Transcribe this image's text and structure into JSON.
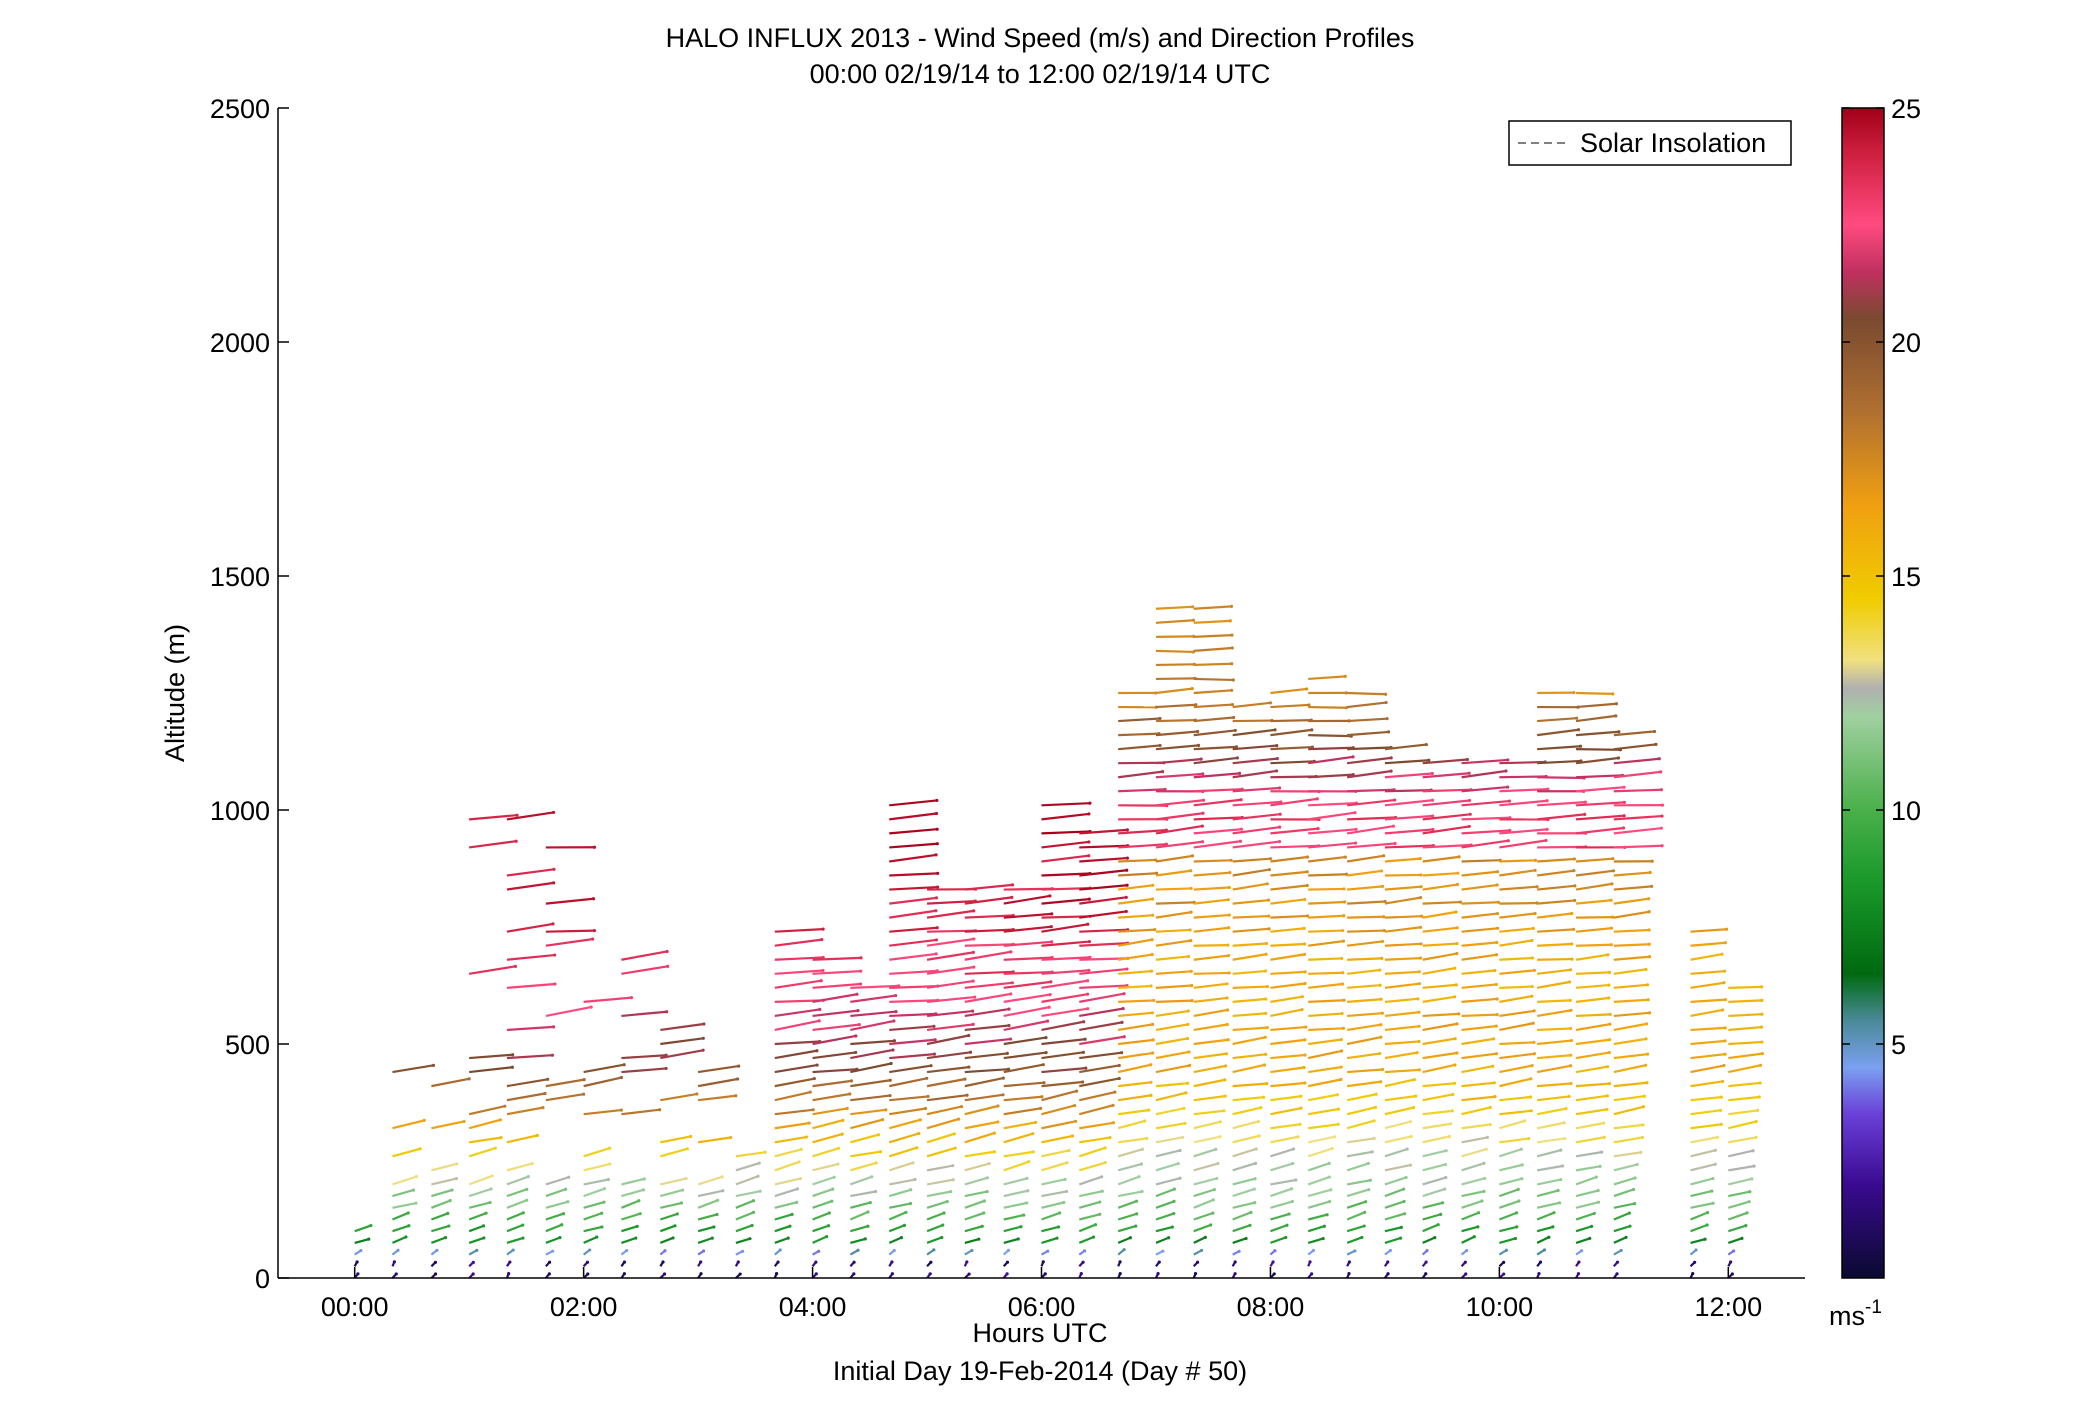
{
  "chart_data": {
    "type": "scatter",
    "title": "HALO INFLUX 2013 - Wind Speed (m/s) and Direction Profiles",
    "subtitle": "00:00 02/19/14 to 12:00 02/19/14  UTC",
    "xlabel": "Hours UTC",
    "xlabel2": "Initial Day 19-Feb-2014 (Day # 50)",
    "ylabel": "Altitude (m)",
    "xlim": [
      -0.67,
      12.67
    ],
    "ylim": [
      0,
      2500
    ],
    "x_ticks": [
      0,
      2,
      4,
      6,
      8,
      10,
      12
    ],
    "x_tick_labels": [
      "00:00",
      "02:00",
      "04:00",
      "06:00",
      "08:00",
      "10:00",
      "12:00"
    ],
    "y_ticks": [
      0,
      500,
      1000,
      1500,
      2000,
      2500
    ],
    "y_tick_labels": [
      "0",
      "500",
      "1000",
      "1500",
      "2000",
      "2500"
    ],
    "legend": {
      "entries": [
        "Solar Insolation"
      ],
      "placement": "top-right"
    },
    "colorbar": {
      "range": [
        0,
        25
      ],
      "ticks": [
        5,
        10,
        15,
        20,
        25
      ],
      "tick_labels": [
        "5",
        "10",
        "15",
        "20",
        "25"
      ],
      "unit_base": "ms",
      "unit_exp": "-1",
      "stops": [
        {
          "v": 0,
          "c": "#0a0a30"
        },
        {
          "v": 2,
          "c": "#3a0a90"
        },
        {
          "v": 3.5,
          "c": "#6a40d8"
        },
        {
          "v": 4.5,
          "c": "#7aa0f0"
        },
        {
          "v": 5.5,
          "c": "#4a8a98"
        },
        {
          "v": 6.5,
          "c": "#006a10"
        },
        {
          "v": 8.5,
          "c": "#1a9a2a"
        },
        {
          "v": 10,
          "c": "#4ab04a"
        },
        {
          "v": 12,
          "c": "#a0d0a0"
        },
        {
          "v": 12.6,
          "c": "#b0b0b0"
        },
        {
          "v": 13.2,
          "c": "#f0e080"
        },
        {
          "v": 14.5,
          "c": "#f0cc00"
        },
        {
          "v": 16.5,
          "c": "#f0a010"
        },
        {
          "v": 18.5,
          "c": "#b07030"
        },
        {
          "v": 20.5,
          "c": "#7a4a30"
        },
        {
          "v": 21.5,
          "c": "#c03060"
        },
        {
          "v": 22.5,
          "c": "#ff4a80"
        },
        {
          "v": 24,
          "c": "#d02040"
        },
        {
          "v": 25,
          "c": "#a00018"
        }
      ]
    },
    "profile_times_h": [
      0.0,
      0.33,
      0.67,
      1.0,
      1.33,
      1.67,
      2.0,
      2.33,
      2.67,
      3.0,
      3.33,
      3.67,
      4.0,
      4.33,
      4.67,
      5.0,
      5.33,
      5.67,
      6.0,
      6.33,
      6.67,
      7.0,
      7.33,
      7.67,
      8.0,
      8.33,
      8.67,
      9.0,
      9.33,
      9.67,
      10.0,
      10.33,
      10.67,
      11.0,
      11.67,
      12.0
    ],
    "profile_top_altitude_m": [
      120,
      460,
      420,
      1060,
      1010,
      1010,
      620,
      910,
      560,
      560,
      260,
      760,
      690,
      640,
      1010,
      830,
      830,
      840,
      1010,
      970,
      1250,
      1450,
      1450,
      1240,
      1250,
      1300,
      1250,
      1130,
      1100,
      1100,
      1100,
      1250,
      1250,
      1170,
      740,
      620
    ],
    "speed_profile_m_s": [
      {
        "alt_m": 25,
        "speed": 1.5,
        "dir_deg": 200
      },
      {
        "alt_m": 75,
        "speed": 8,
        "dir_deg": 235
      },
      {
        "alt_m": 150,
        "speed": 11,
        "dir_deg": 240
      },
      {
        "alt_m": 250,
        "speed": 14,
        "dir_deg": 245
      },
      {
        "alt_m": 350,
        "speed": 17.5,
        "dir_deg": 250
      },
      {
        "alt_m": 450,
        "speed": 20.5,
        "dir_deg": 255
      },
      {
        "alt_m": 600,
        "speed": 22.5,
        "dir_deg": 258
      },
      {
        "alt_m": 800,
        "speed": 24,
        "dir_deg": 260
      },
      {
        "alt_m": 1000,
        "speed": 24.5,
        "dir_deg": 262
      },
      {
        "alt_m": 1250,
        "speed": 19,
        "dir_deg": 265
      }
    ]
  }
}
